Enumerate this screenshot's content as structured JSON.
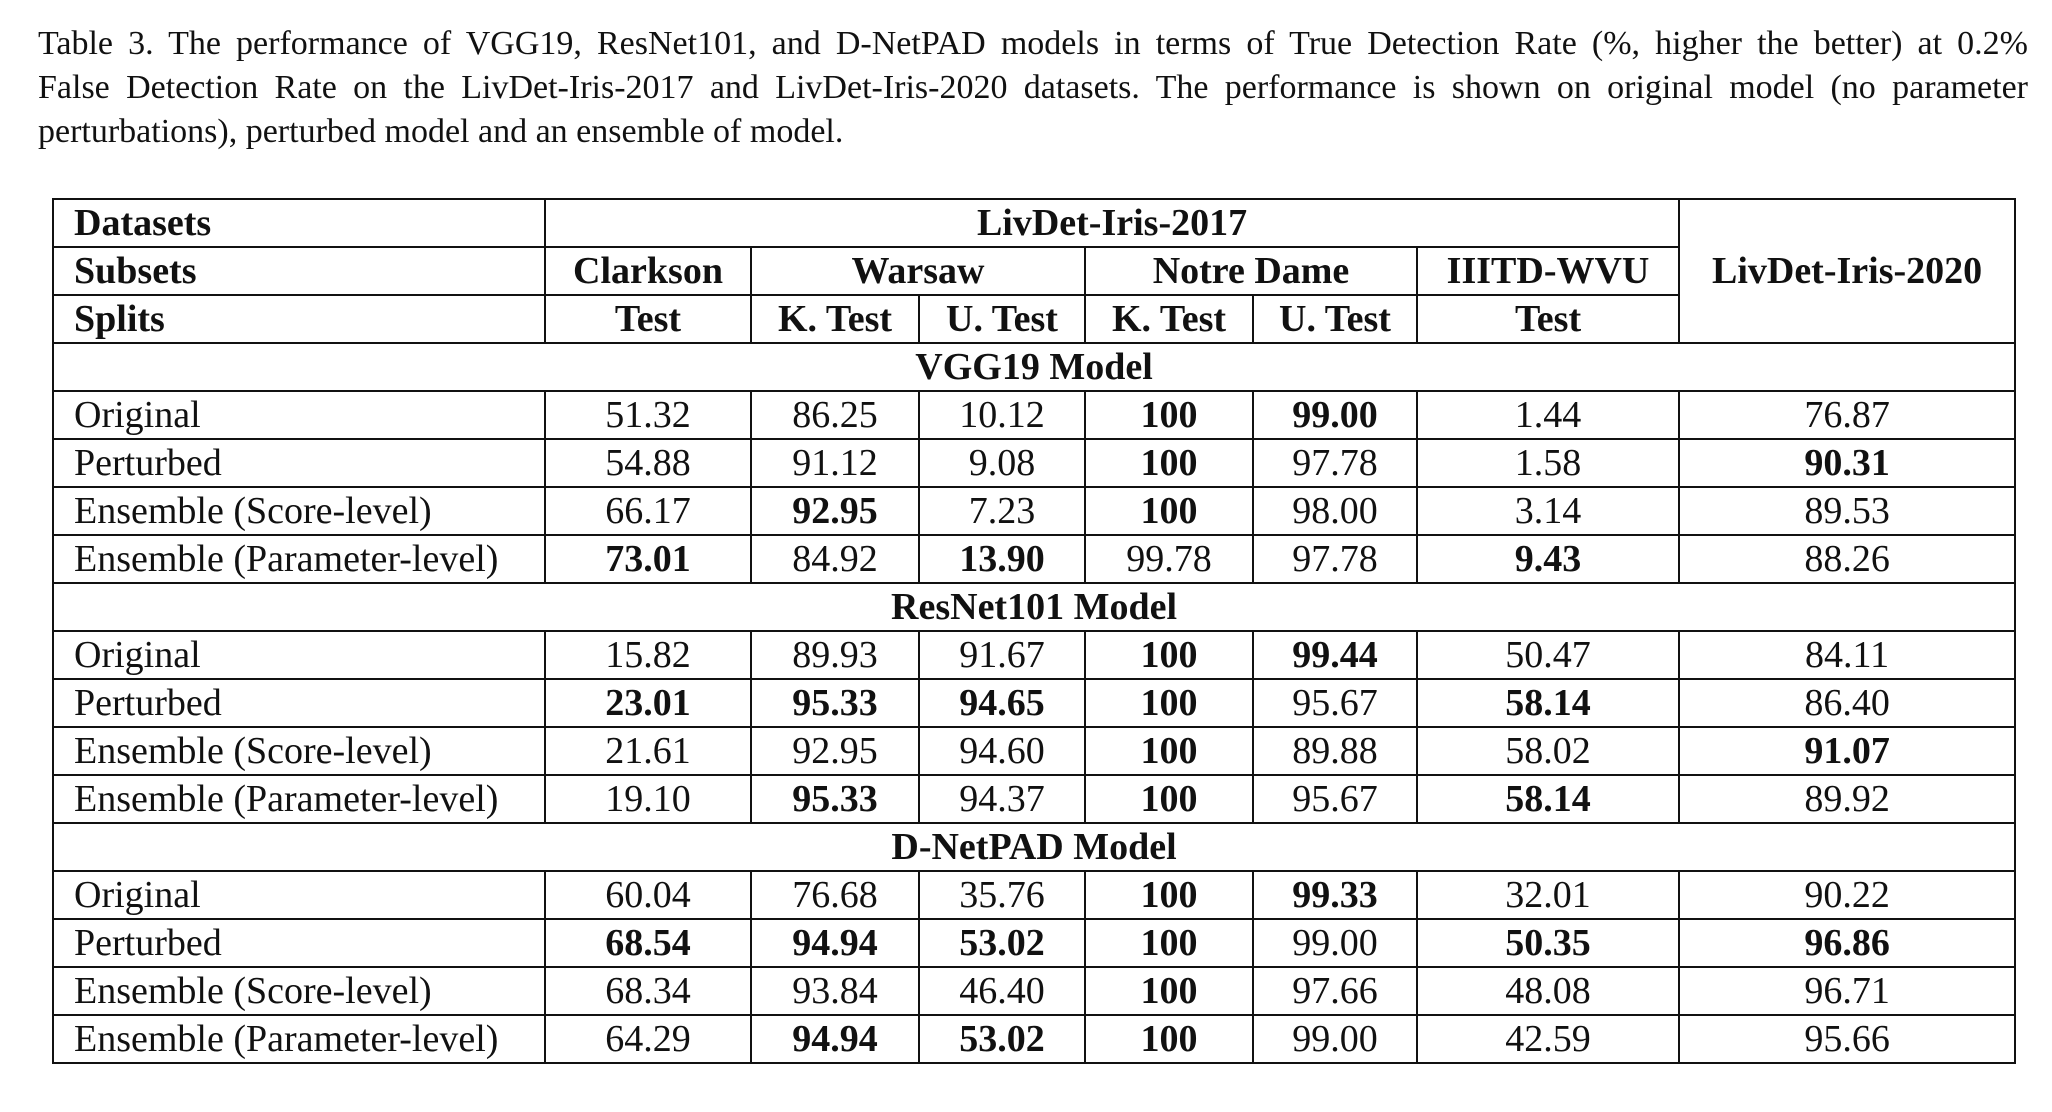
{
  "caption": {
    "line1": "Table 3. The performance of VGG19, ResNet101, and D-NetPAD models in terms of True Detection Rate (%, higher the better) at 0.2%",
    "line2": "False Detection Rate on the LivDet-Iris-2017 and LivDet-Iris-2020 datasets. The performance is shown on original model (no parameter",
    "line3": "perturbations), perturbed model and an ensemble of model."
  },
  "table": {
    "header": {
      "datasets_label": "Datasets",
      "subsets_label": "Subsets",
      "splits_label": "Splits",
      "livdet2017": "LivDet-Iris-2017",
      "livdet2020": "LivDet-Iris-2020",
      "subsets": [
        "Clarkson",
        "Warsaw",
        "Notre Dame",
        "IIITD-WVU"
      ],
      "splits": [
        "Test",
        "K. Test",
        "U. Test",
        "K. Test",
        "U. Test",
        "Test"
      ]
    },
    "sections": [
      {
        "title": "VGG19 Model",
        "rows": [
          {
            "label": "Original",
            "values": [
              "51.32",
              "86.25",
              "10.12",
              "100",
              "99.00",
              "1.44",
              "76.87"
            ],
            "bold": [
              false,
              false,
              false,
              true,
              true,
              false,
              false
            ]
          },
          {
            "label": "Perturbed",
            "values": [
              "54.88",
              "91.12",
              "9.08",
              "100",
              "97.78",
              "1.58",
              "90.31"
            ],
            "bold": [
              false,
              false,
              false,
              true,
              false,
              false,
              true
            ]
          },
          {
            "label": "Ensemble (Score-level)",
            "values": [
              "66.17",
              "92.95",
              "7.23",
              "100",
              "98.00",
              "3.14",
              "89.53"
            ],
            "bold": [
              false,
              true,
              false,
              true,
              false,
              false,
              false
            ]
          },
          {
            "label": "Ensemble (Parameter-level)",
            "values": [
              "73.01",
              "84.92",
              "13.90",
              "99.78",
              "97.78",
              "9.43",
              "88.26"
            ],
            "bold": [
              true,
              false,
              true,
              false,
              false,
              true,
              false
            ]
          }
        ]
      },
      {
        "title": "ResNet101 Model",
        "rows": [
          {
            "label": "Original",
            "values": [
              "15.82",
              "89.93",
              "91.67",
              "100",
              "99.44",
              "50.47",
              "84.11"
            ],
            "bold": [
              false,
              false,
              false,
              true,
              true,
              false,
              false
            ]
          },
          {
            "label": "Perturbed",
            "values": [
              "23.01",
              "95.33",
              "94.65",
              "100",
              "95.67",
              "58.14",
              "86.40"
            ],
            "bold": [
              true,
              true,
              true,
              true,
              false,
              true,
              false
            ]
          },
          {
            "label": "Ensemble (Score-level)",
            "values": [
              "21.61",
              "92.95",
              "94.60",
              "100",
              "89.88",
              "58.02",
              "91.07"
            ],
            "bold": [
              false,
              false,
              false,
              true,
              false,
              false,
              true
            ]
          },
          {
            "label": "Ensemble (Parameter-level)",
            "values": [
              "19.10",
              "95.33",
              "94.37",
              "100",
              "95.67",
              "58.14",
              "89.92"
            ],
            "bold": [
              false,
              true,
              false,
              true,
              false,
              true,
              false
            ]
          }
        ]
      },
      {
        "title": "D-NetPAD Model",
        "rows": [
          {
            "label": "Original",
            "values": [
              "60.04",
              "76.68",
              "35.76",
              "100",
              "99.33",
              "32.01",
              "90.22"
            ],
            "bold": [
              false,
              false,
              false,
              true,
              true,
              false,
              false
            ]
          },
          {
            "label": "Perturbed",
            "values": [
              "68.54",
              "94.94",
              "53.02",
              "100",
              "99.00",
              "50.35",
              "96.86"
            ],
            "bold": [
              true,
              true,
              true,
              true,
              false,
              true,
              true
            ]
          },
          {
            "label": "Ensemble (Score-level)",
            "values": [
              "68.34",
              "93.84",
              "46.40",
              "100",
              "97.66",
              "48.08",
              "96.71"
            ],
            "bold": [
              false,
              false,
              false,
              true,
              false,
              false,
              false
            ]
          },
          {
            "label": "Ensemble (Parameter-level)",
            "values": [
              "64.29",
              "94.94",
              "53.02",
              "100",
              "99.00",
              "42.59",
              "95.66"
            ],
            "bold": [
              false,
              true,
              true,
              true,
              false,
              false,
              false
            ]
          }
        ]
      }
    ]
  }
}
